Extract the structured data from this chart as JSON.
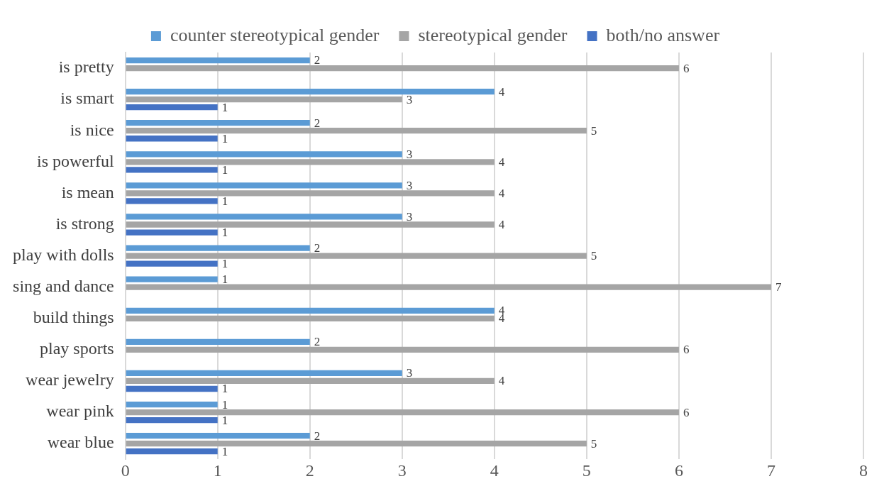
{
  "chart_data": {
    "type": "bar",
    "orientation": "horizontal",
    "categories": [
      "is pretty",
      "is smart",
      "is nice",
      "is powerful",
      "is mean",
      "is strong",
      "play with dolls",
      "sing and dance",
      "build things",
      "play sports",
      "wear jewelry",
      "wear pink",
      "wear blue"
    ],
    "series": [
      {
        "name": "counter stereotypical gender",
        "color": "#5b9bd5",
        "values": [
          2,
          4,
          2,
          3,
          3,
          3,
          2,
          1,
          4,
          2,
          3,
          1,
          2
        ]
      },
      {
        "name": "stereotypical gender",
        "color": "#a5a5a5",
        "values": [
          6,
          3,
          5,
          4,
          4,
          4,
          5,
          7,
          4,
          6,
          4,
          6,
          5
        ]
      },
      {
        "name": "both/no answer",
        "color": "#4472c4",
        "values": [
          null,
          1,
          1,
          1,
          1,
          1,
          1,
          null,
          null,
          null,
          1,
          1,
          1
        ]
      }
    ],
    "xlim": [
      0,
      8
    ],
    "xticks": [
      0,
      1,
      2,
      3,
      4,
      5,
      6,
      7,
      8
    ],
    "grid": "x",
    "legend": "top",
    "data_labels": true
  }
}
